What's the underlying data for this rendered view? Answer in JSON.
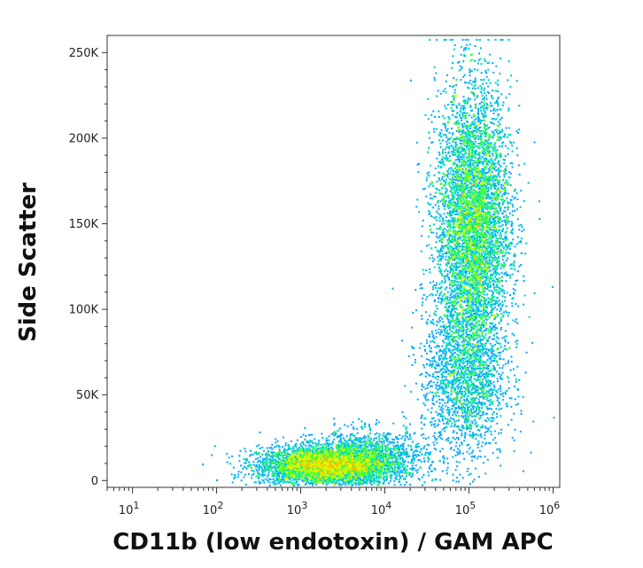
{
  "chart_data": {
    "type": "scatter",
    "style": "flow-cytometry density dot plot",
    "xlabel": "CD11b (low endotoxin) / GAM APC",
    "ylabel": "Side Scatter",
    "x_scale": "log",
    "xlim": [
      5,
      1200000
    ],
    "ylim": [
      -4000,
      260000
    ],
    "x_ticks": [
      {
        "value": 10,
        "base": "10",
        "exp": "1"
      },
      {
        "value": 100,
        "base": "10",
        "exp": "2"
      },
      {
        "value": 1000,
        "base": "10",
        "exp": "3"
      },
      {
        "value": 10000,
        "base": "10",
        "exp": "4"
      },
      {
        "value": 100000,
        "base": "10",
        "exp": "5"
      },
      {
        "value": 1000000,
        "base": "10",
        "exp": "6"
      }
    ],
    "y_ticks": [
      {
        "value": 0,
        "label": "0"
      },
      {
        "value": 50000,
        "label": "50K"
      },
      {
        "value": 100000,
        "label": "100K"
      },
      {
        "value": 150000,
        "label": "150K"
      },
      {
        "value": 200000,
        "label": "200K"
      },
      {
        "value": 250000,
        "label": "250K"
      }
    ],
    "populations": [
      {
        "center_x": 1800,
        "center_y": 9000,
        "spread_log10_x": 0.38,
        "spread_y": 5500,
        "events": 4200
      },
      {
        "center_x": 6000,
        "center_y": 14000,
        "spread_log10_x": 0.35,
        "spread_y": 8000,
        "events": 1400
      },
      {
        "center_x": 110000,
        "center_y": 150000,
        "spread_log10_x": 0.22,
        "spread_y": 40000,
        "events": 6500
      },
      {
        "center_x": 85000,
        "center_y": 60000,
        "spread_log10_x": 0.25,
        "spread_y": 25000,
        "events": 1800
      }
    ],
    "density_colors": [
      "#1010ff",
      "#00a8ff",
      "#00e0c0",
      "#40ff40",
      "#d0ff00",
      "#ffc000",
      "#ff4000",
      "#e00000"
    ]
  }
}
